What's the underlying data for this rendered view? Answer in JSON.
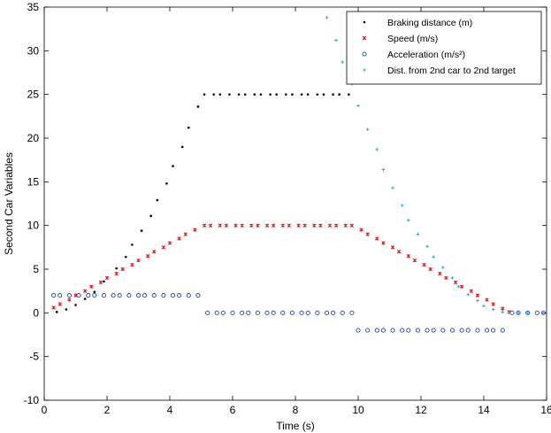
{
  "chart_data": {
    "type": "scatter",
    "xlabel": "Time (s)",
    "ylabel": "Second Car Variables",
    "xlim": [
      0,
      16
    ],
    "ylim": [
      -10,
      35
    ],
    "xticks": [
      "0",
      "2",
      "4",
      "6",
      "8",
      "10",
      "12",
      "14",
      "16"
    ],
    "yticks": [
      "-10",
      "-5",
      "0",
      "5",
      "10",
      "15",
      "20",
      "25",
      "30",
      "35"
    ],
    "grid": false,
    "legend_position": "top-right",
    "series": [
      {
        "name": "Braking distance (m)",
        "marker": "dot",
        "color": "#000000",
        "points": [
          [
            0.4,
            0.1
          ],
          [
            0.7,
            0.4
          ],
          [
            1.0,
            0.9
          ],
          [
            1.3,
            1.6
          ],
          [
            1.6,
            2.4
          ],
          [
            1.9,
            3.6
          ],
          [
            2.3,
            5.1
          ],
          [
            2.6,
            6.4
          ],
          [
            2.8,
            7.8
          ],
          [
            3.1,
            9.4
          ],
          [
            3.4,
            11.1
          ],
          [
            3.6,
            12.9
          ],
          [
            3.9,
            14.8
          ],
          [
            4.1,
            16.8
          ],
          [
            4.4,
            19.0
          ],
          [
            4.6,
            21.2
          ],
          [
            4.9,
            23.6
          ],
          [
            5.1,
            25.0
          ],
          [
            5.4,
            25.0
          ],
          [
            5.6,
            25.0
          ],
          [
            5.9,
            25.0
          ],
          [
            6.2,
            25.0
          ],
          [
            6.4,
            25.0
          ],
          [
            6.7,
            25.0
          ],
          [
            6.9,
            25.0
          ],
          [
            7.2,
            25.0
          ],
          [
            7.4,
            25.0
          ],
          [
            7.7,
            25.0
          ],
          [
            7.9,
            25.0
          ],
          [
            8.2,
            25.0
          ],
          [
            8.4,
            25.0
          ],
          [
            8.7,
            25.0
          ],
          [
            8.9,
            25.0
          ],
          [
            9.2,
            25.0
          ],
          [
            9.4,
            25.0
          ],
          [
            9.7,
            25.0
          ]
        ]
      },
      {
        "name": "Speed (m/s)",
        "marker": "cross",
        "color": "#e02020",
        "points": [
          [
            0.3,
            0.6
          ],
          [
            0.5,
            1.0
          ],
          [
            0.8,
            1.5
          ],
          [
            1.0,
            2.0
          ],
          [
            1.3,
            2.5
          ],
          [
            1.5,
            3.0
          ],
          [
            1.8,
            3.5
          ],
          [
            2.0,
            4.0
          ],
          [
            2.3,
            4.5
          ],
          [
            2.5,
            5.0
          ],
          [
            2.8,
            5.5
          ],
          [
            3.0,
            6.0
          ],
          [
            3.3,
            6.5
          ],
          [
            3.5,
            7.0
          ],
          [
            3.8,
            7.5
          ],
          [
            4.0,
            8.0
          ],
          [
            4.3,
            8.5
          ],
          [
            4.5,
            9.0
          ],
          [
            4.8,
            9.5
          ],
          [
            5.1,
            10.0
          ],
          [
            5.3,
            10.0
          ],
          [
            5.6,
            10.0
          ],
          [
            5.8,
            10.0
          ],
          [
            6.1,
            10.0
          ],
          [
            6.3,
            10.0
          ],
          [
            6.6,
            10.0
          ],
          [
            6.8,
            10.0
          ],
          [
            7.1,
            10.0
          ],
          [
            7.3,
            10.0
          ],
          [
            7.6,
            10.0
          ],
          [
            7.8,
            10.0
          ],
          [
            8.1,
            10.0
          ],
          [
            8.3,
            10.0
          ],
          [
            8.6,
            10.0
          ],
          [
            8.8,
            10.0
          ],
          [
            9.1,
            10.0
          ],
          [
            9.3,
            10.0
          ],
          [
            9.6,
            10.0
          ],
          [
            9.8,
            10.0
          ],
          [
            10.1,
            9.5
          ],
          [
            10.3,
            9.0
          ],
          [
            10.6,
            8.5
          ],
          [
            10.8,
            8.0
          ],
          [
            11.1,
            7.5
          ],
          [
            11.3,
            7.0
          ],
          [
            11.6,
            6.5
          ],
          [
            11.8,
            6.0
          ],
          [
            12.1,
            5.5
          ],
          [
            12.3,
            5.0
          ],
          [
            12.6,
            4.5
          ],
          [
            12.8,
            4.0
          ],
          [
            13.1,
            3.5
          ],
          [
            13.3,
            3.0
          ],
          [
            13.6,
            2.5
          ],
          [
            13.8,
            2.0
          ],
          [
            14.1,
            1.5
          ],
          [
            14.3,
            1.0
          ],
          [
            14.6,
            0.5
          ],
          [
            14.8,
            0.1
          ]
        ]
      },
      {
        "name": "Acceleration (m/s²)",
        "marker": "circle",
        "color": "#1a3fbf",
        "points": [
          [
            0.3,
            2
          ],
          [
            0.5,
            2
          ],
          [
            0.8,
            2
          ],
          [
            1.1,
            2
          ],
          [
            1.4,
            2
          ],
          [
            1.6,
            2
          ],
          [
            1.9,
            2
          ],
          [
            2.2,
            2
          ],
          [
            2.4,
            2
          ],
          [
            2.7,
            2
          ],
          [
            3.0,
            2
          ],
          [
            3.2,
            2
          ],
          [
            3.5,
            2
          ],
          [
            3.8,
            2
          ],
          [
            4.1,
            2
          ],
          [
            4.3,
            2
          ],
          [
            4.6,
            2
          ],
          [
            4.9,
            2
          ],
          [
            5.2,
            0
          ],
          [
            5.5,
            0
          ],
          [
            5.7,
            0
          ],
          [
            6.0,
            0
          ],
          [
            6.3,
            0
          ],
          [
            6.5,
            0
          ],
          [
            6.8,
            0
          ],
          [
            7.1,
            0
          ],
          [
            7.3,
            0
          ],
          [
            7.6,
            0
          ],
          [
            7.9,
            0
          ],
          [
            8.2,
            0
          ],
          [
            8.4,
            0
          ],
          [
            8.7,
            0
          ],
          [
            9.0,
            0
          ],
          [
            9.2,
            0
          ],
          [
            9.5,
            0
          ],
          [
            9.8,
            0
          ],
          [
            10.0,
            -2
          ],
          [
            10.3,
            -2
          ],
          [
            10.6,
            -2
          ],
          [
            10.8,
            -2
          ],
          [
            11.1,
            -2
          ],
          [
            11.4,
            -2
          ],
          [
            11.6,
            -2
          ],
          [
            11.9,
            -2
          ],
          [
            12.2,
            -2
          ],
          [
            12.4,
            -2
          ],
          [
            12.7,
            -2
          ],
          [
            13.0,
            -2
          ],
          [
            13.3,
            -2
          ],
          [
            13.5,
            -2
          ],
          [
            13.8,
            -2
          ],
          [
            14.1,
            -2
          ],
          [
            14.3,
            -2
          ],
          [
            14.6,
            -2
          ],
          [
            14.9,
            0
          ],
          [
            15.1,
            0
          ],
          [
            15.4,
            0
          ],
          [
            15.7,
            0
          ],
          [
            15.9,
            0
          ]
        ]
      },
      {
        "name": "Dist. from 2nd car to 2nd target",
        "marker": "plus",
        "color": "#3aa8c8",
        "points": [
          [
            9.0,
            33.8
          ],
          [
            9.3,
            31.2
          ],
          [
            9.5,
            28.7
          ],
          [
            9.8,
            26.2
          ],
          [
            10.0,
            23.7
          ],
          [
            10.3,
            21.0
          ],
          [
            10.6,
            18.7
          ],
          [
            10.8,
            16.4
          ],
          [
            11.1,
            14.3
          ],
          [
            11.4,
            12.3
          ],
          [
            11.6,
            10.6
          ],
          [
            11.9,
            9.0
          ],
          [
            12.2,
            7.6
          ],
          [
            12.4,
            6.4
          ],
          [
            12.7,
            5.2
          ],
          [
            13.0,
            4.0
          ],
          [
            13.2,
            3.0
          ],
          [
            13.5,
            2.1
          ],
          [
            13.8,
            1.4
          ],
          [
            14.0,
            0.8
          ],
          [
            14.3,
            0.4
          ],
          [
            14.6,
            0.1
          ],
          [
            14.8,
            0.0
          ],
          [
            15.1,
            0.0
          ],
          [
            15.4,
            0.0
          ]
        ]
      }
    ]
  }
}
